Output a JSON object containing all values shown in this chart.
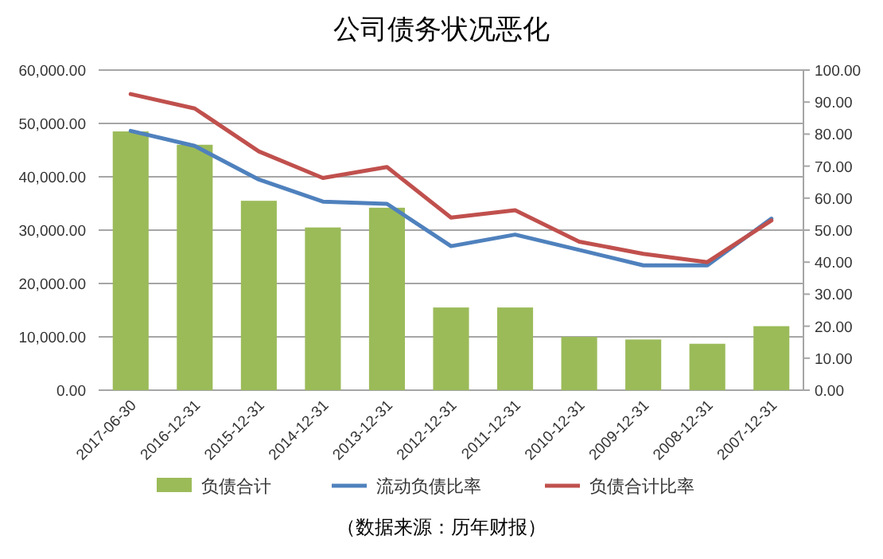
{
  "chart_data": {
    "type": "bar",
    "title": "公司债务状况恶化",
    "categories": [
      "2017-06-30",
      "2016-12-31",
      "2015-12-31",
      "2014-12-31",
      "2013-12-31",
      "2012-12-31",
      "2011-12-31",
      "2010-12-31",
      "2009-12-31",
      "2008-12-31",
      "2007-12-31"
    ],
    "series": [
      {
        "name": "负债合计",
        "color": "#9bbb59",
        "values": [
          48500,
          46000,
          35500,
          30500,
          34200,
          15500,
          15500,
          10000,
          9500,
          8700,
          12000
        ]
      },
      {
        "name": "流动负债比率",
        "type": "line",
        "axis": "y2",
        "color": "#4f81bd",
        "values": [
          81,
          76.3,
          65.8,
          58.9,
          58.2,
          45,
          48.6,
          43.8,
          39,
          39,
          53.6
        ]
      },
      {
        "name": "负债合计比率",
        "type": "line",
        "axis": "y2",
        "color": "#c0504d",
        "values": [
          92.5,
          88,
          74.6,
          66.3,
          69.7,
          53.9,
          56.2,
          46.4,
          42.6,
          40,
          53
        ]
      }
    ],
    "ylim": [
      0,
      60000
    ],
    "yticks": [
      {
        "value": 0,
        "label": "0.00"
      },
      {
        "value": 10000,
        "label": "10,000.00"
      },
      {
        "value": 20000,
        "label": "20,000.00"
      },
      {
        "value": 30000,
        "label": "30,000.00"
      },
      {
        "value": 40000,
        "label": "40,000.00"
      },
      {
        "value": 50000,
        "label": "50,000.00"
      },
      {
        "value": 60000,
        "label": "60,000.00"
      }
    ],
    "y2lim": [
      0,
      100
    ],
    "y2ticks": [
      {
        "value": 0,
        "label": "0.00"
      },
      {
        "value": 10,
        "label": "10.00"
      },
      {
        "value": 20,
        "label": "20.00"
      },
      {
        "value": 30,
        "label": "30.00"
      },
      {
        "value": 40,
        "label": "40.00"
      },
      {
        "value": 50,
        "label": "50.00"
      },
      {
        "value": 60,
        "label": "60.00"
      },
      {
        "value": 70,
        "label": "70.00"
      },
      {
        "value": 80,
        "label": "80.00"
      },
      {
        "value": 90,
        "label": "90.00"
      },
      {
        "value": 100,
        "label": "100.00"
      }
    ],
    "grid": "y",
    "legend": "bottom",
    "marker": "none",
    "annotations": [
      "（数据来源：历年财报）"
    ]
  }
}
